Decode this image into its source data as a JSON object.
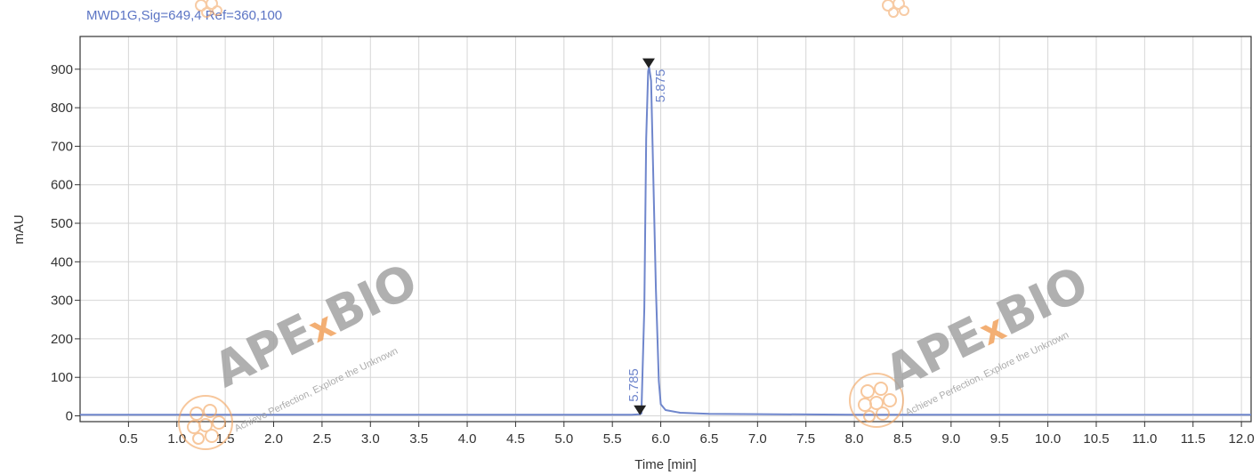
{
  "signal_label": "MWD1G,Sig=649,4  Ref=360,100",
  "watermark": {
    "brand_prefix": "APE",
    "brand_x": "x",
    "brand_suffix": "BIO",
    "tagline": "Achieve Perfection, Explore the Unknown",
    "brand_color": "#a3a3a3",
    "accent_color": "#f2a25c"
  },
  "chart_data": {
    "type": "line",
    "xlabel": "Time [min]",
    "ylabel": "mAU",
    "xlim": [
      0,
      12.1
    ],
    "ylim": [
      -15,
      985
    ],
    "x_ticks": [
      0.5,
      1.0,
      1.5,
      2.0,
      2.5,
      3.0,
      3.5,
      4.0,
      4.5,
      5.0,
      5.5,
      6.0,
      6.5,
      7.0,
      7.5,
      8.0,
      8.5,
      9.0,
      9.5,
      10.0,
      10.5,
      11.0,
      11.5,
      12.0
    ],
    "x_tick_labels": [
      "0.5",
      "1.0",
      "1.5",
      "2.0",
      "2.5",
      "3.0",
      "3.5",
      "4.0",
      "4.5",
      "5.0",
      "5.5",
      "6.0",
      "6.5",
      "7.0",
      "7.5",
      "8.0",
      "8.5",
      "9.0",
      "9.5",
      "10.0",
      "10.5",
      "11.0",
      "11.5",
      "12.0"
    ],
    "y_ticks": [
      0,
      100,
      200,
      300,
      400,
      500,
      600,
      700,
      800,
      900
    ],
    "y_tick_labels": [
      "0",
      "100",
      "200",
      "300",
      "400",
      "500",
      "600",
      "700",
      "800",
      "900"
    ],
    "grid": true,
    "line_color": "#6f86cc",
    "series": [
      {
        "x": [
          0.0,
          5.0,
          5.5,
          5.7,
          5.78,
          5.8,
          5.83,
          5.85,
          5.87,
          5.88,
          5.9,
          5.92,
          5.95,
          5.98,
          6.0,
          6.05,
          6.2,
          6.5,
          8.0,
          10.0,
          12.1
        ],
        "y": [
          3,
          3,
          3,
          3,
          4,
          6,
          280,
          720,
          895,
          905,
          870,
          650,
          330,
          90,
          30,
          15,
          8,
          5,
          3,
          3,
          3
        ]
      }
    ],
    "peak_labels": [
      {
        "x": 5.875,
        "y": 905,
        "text": "5.875"
      },
      {
        "x": 5.785,
        "y": 4,
        "text": "5.785"
      }
    ]
  }
}
